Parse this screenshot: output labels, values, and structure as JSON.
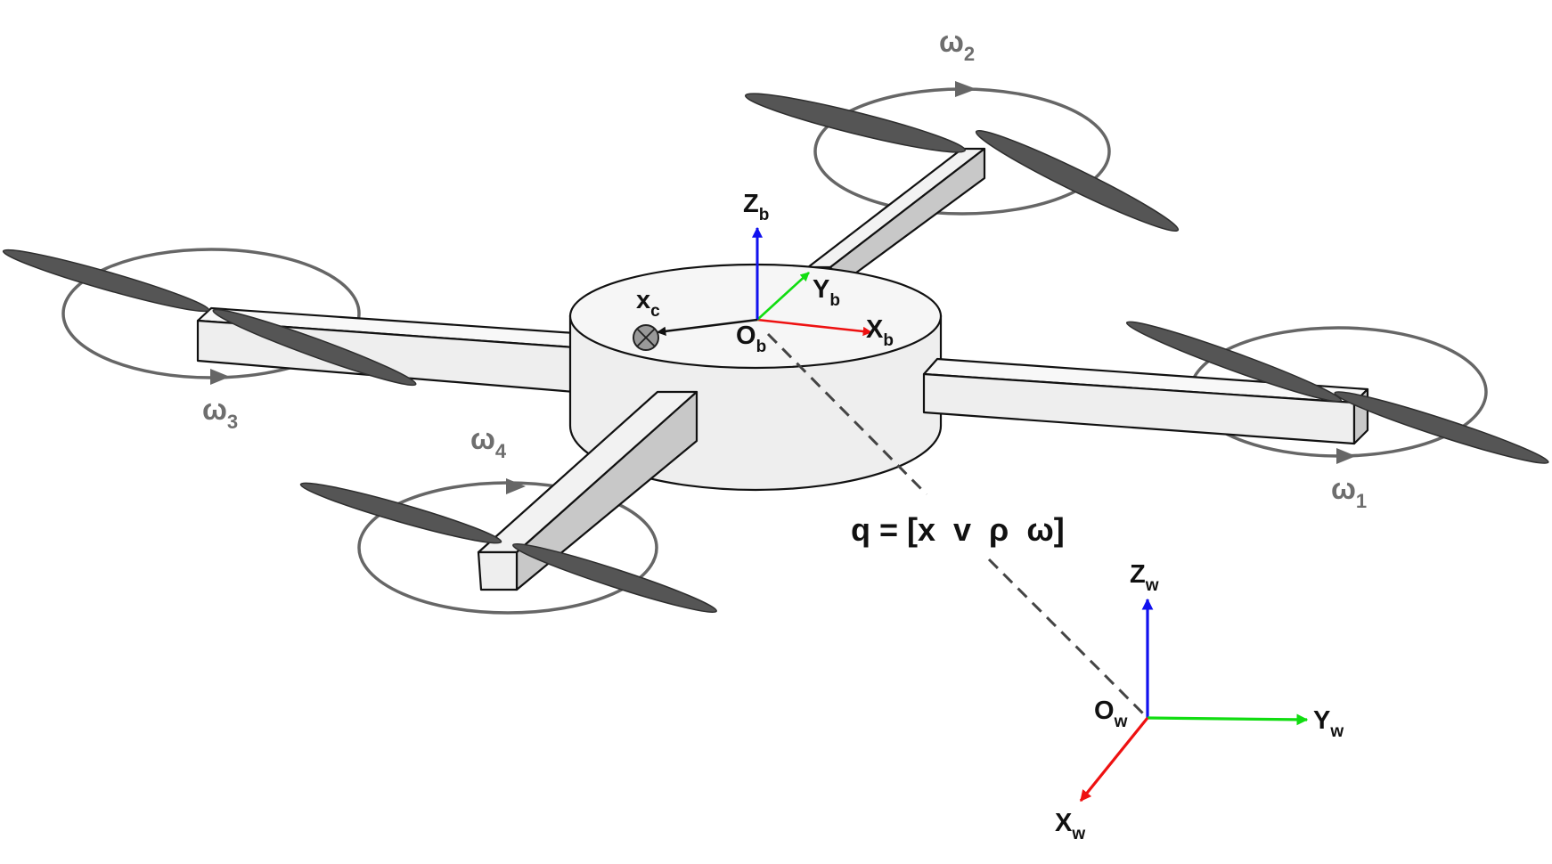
{
  "body_frame": {
    "origin": {
      "base": "O",
      "sub": "b"
    },
    "x_axis": {
      "base": "X",
      "sub": "b"
    },
    "y_axis": {
      "base": "Y",
      "sub": "b"
    },
    "z_axis": {
      "base": "Z",
      "sub": "b"
    },
    "center_point": {
      "base": "x",
      "sub": "c"
    }
  },
  "world_frame": {
    "origin": {
      "base": "O",
      "sub": "w"
    },
    "x_axis": {
      "base": "X",
      "sub": "w"
    },
    "y_axis": {
      "base": "Y",
      "sub": "w"
    },
    "z_axis": {
      "base": "Z",
      "sub": "w"
    }
  },
  "rotors": [
    {
      "base": "ω",
      "sub": "1"
    },
    {
      "base": "ω",
      "sub": "2"
    },
    {
      "base": "ω",
      "sub": "3"
    },
    {
      "base": "ω",
      "sub": "4"
    }
  ],
  "state_equation": "q = [x  v  ρ  ω]",
  "colors": {
    "x_axis": "#ee1111",
    "y_axis": "#11dd11",
    "z_axis": "#1111ee",
    "rotor_label": "#6e6e6e",
    "body_fill": "#eeeeee",
    "blade": "#555555"
  }
}
